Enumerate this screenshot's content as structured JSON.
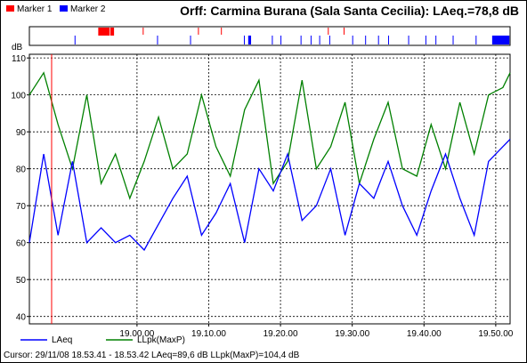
{
  "title": "Orff: Carmina Burana (Sala Santa Cecilia): LAeq.=78,8 dB",
  "markers": {
    "legend": [
      {
        "label": "Marker 1",
        "color": "#ff0000"
      },
      {
        "label": "Marker 2",
        "color": "#0000ff"
      }
    ]
  },
  "status": "Cursor: 29/11/08 18.53.41 - 18.53.42  LAeq=89,6 dB  LLpk(MaxP)=104,4 dB",
  "chart_data": {
    "type": "line",
    "title": "Orff: Carmina Burana (Sala Santa Cecilia): LAeq.=78,8 dB",
    "ylabel": "dB",
    "ylim": [
      38,
      111
    ],
    "yticks": [
      40,
      50,
      60,
      70,
      80,
      90,
      100,
      110
    ],
    "xlim": [
      18.85,
      19.52
    ],
    "xticks": [
      {
        "value": 19.0,
        "label": "19.00.00"
      },
      {
        "value": 19.1,
        "label": "19.10.00"
      },
      {
        "value": 19.2,
        "label": "19.20.00"
      },
      {
        "value": 19.3,
        "label": "19.30.00"
      },
      {
        "value": 19.4,
        "label": "19.40.00"
      },
      {
        "value": 19.5,
        "label": "19.50.00"
      }
    ],
    "grid": true,
    "legend_position": "bottom",
    "cursor_x": 18.881,
    "x": [
      18.85,
      18.87,
      18.89,
      18.91,
      18.93,
      18.95,
      18.97,
      18.99,
      19.01,
      19.03,
      19.05,
      19.07,
      19.09,
      19.11,
      19.13,
      19.15,
      19.17,
      19.19,
      19.21,
      19.23,
      19.25,
      19.27,
      19.29,
      19.31,
      19.33,
      19.35,
      19.37,
      19.39,
      19.41,
      19.43,
      19.45,
      19.47,
      19.49,
      19.51,
      19.52
    ],
    "series": [
      {
        "name": "LAeq",
        "color": "#0000ff",
        "values": [
          60,
          84,
          62,
          82,
          60,
          64,
          60,
          62,
          58,
          65,
          72,
          78,
          62,
          68,
          76,
          60,
          80,
          74,
          84,
          66,
          70,
          80,
          62,
          76,
          72,
          82,
          70,
          62,
          74,
          84,
          72,
          62,
          82,
          86,
          88
        ]
      },
      {
        "name": "LLpk(MaxP)",
        "color": "#008000",
        "values": [
          100,
          106,
          92,
          80,
          100,
          76,
          84,
          72,
          82,
          94,
          80,
          84,
          100,
          86,
          78,
          96,
          104,
          76,
          82,
          104,
          80,
          86,
          98,
          76,
          88,
          98,
          80,
          78,
          92,
          80,
          98,
          84,
          100,
          102,
          106
        ]
      }
    ],
    "markers": [
      {
        "name": "Marker 1",
        "color": "#ff0000",
        "ranges": [
          [
            18.946,
            18.962
          ],
          [
            18.963,
            18.968
          ],
          [
            19.008,
            19.009
          ],
          [
            19.085,
            19.086
          ],
          [
            19.117,
            19.118
          ],
          [
            19.266,
            19.267
          ],
          [
            19.288,
            19.289
          ]
        ]
      },
      {
        "name": "Marker 2",
        "color": "#0000ff",
        "ranges": [
          [
            18.913,
            18.914
          ],
          [
            19.028,
            19.029
          ],
          [
            19.074,
            19.075
          ],
          [
            19.149,
            19.15
          ],
          [
            19.155,
            19.159
          ],
          [
            19.188,
            19.189
          ],
          [
            19.2,
            19.201
          ],
          [
            19.228,
            19.229
          ],
          [
            19.242,
            19.243
          ],
          [
            19.254,
            19.255
          ],
          [
            19.268,
            19.269
          ],
          [
            19.3,
            19.301
          ],
          [
            19.318,
            19.319
          ],
          [
            19.336,
            19.337
          ],
          [
            19.35,
            19.351
          ],
          [
            19.378,
            19.379
          ],
          [
            19.402,
            19.403
          ],
          [
            19.416,
            19.417
          ],
          [
            19.44,
            19.441
          ],
          [
            19.472,
            19.473
          ],
          [
            19.495,
            19.519
          ]
        ]
      }
    ]
  }
}
